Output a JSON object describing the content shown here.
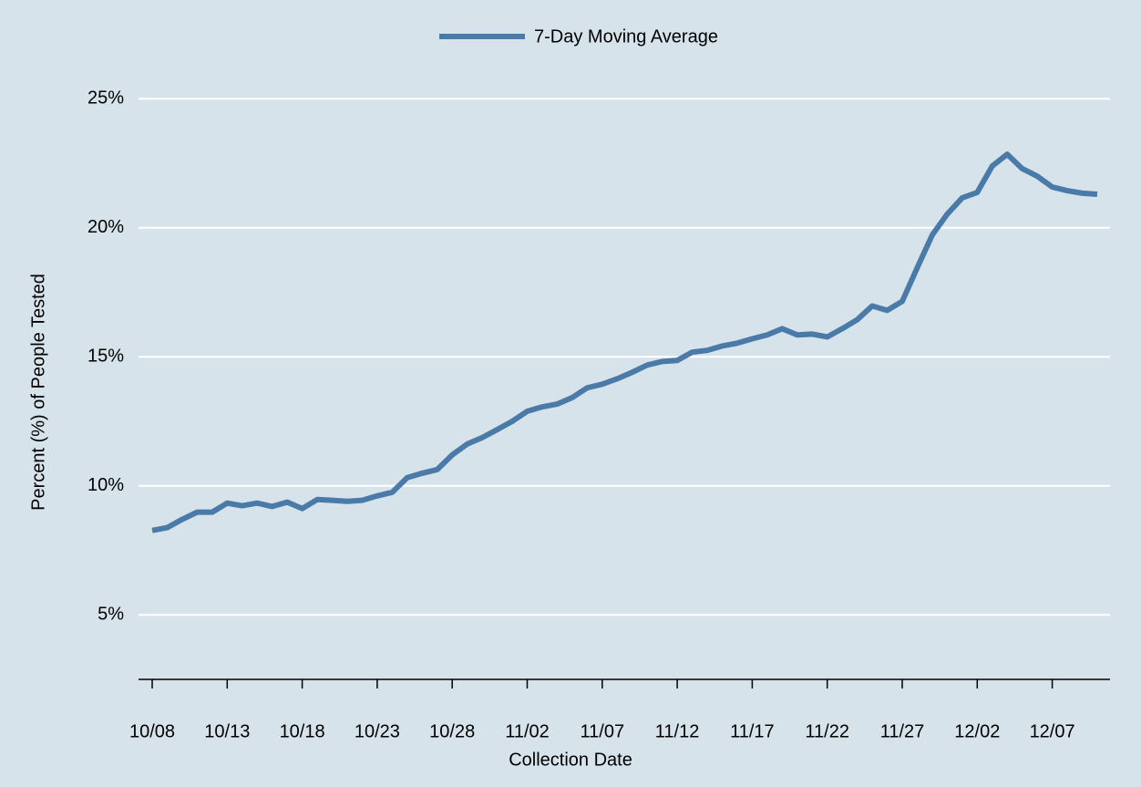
{
  "chart_data": {
    "type": "line",
    "x_label": "Collection Date",
    "y_label": "Percent (%) of People Tested",
    "categories": [
      "10/08",
      null,
      null,
      null,
      null,
      "10/13",
      null,
      null,
      null,
      null,
      "10/18",
      null,
      null,
      null,
      null,
      "10/23",
      null,
      null,
      null,
      null,
      "10/28",
      null,
      null,
      null,
      null,
      "11/02",
      null,
      null,
      null,
      null,
      "11/07",
      null,
      null,
      null,
      null,
      "11/12",
      null,
      null,
      null,
      null,
      "11/17",
      null,
      null,
      null,
      null,
      "11/22",
      null,
      null,
      null,
      null,
      "11/27",
      null,
      null,
      null,
      null,
      "12/02",
      null,
      null,
      null,
      null,
      "12/07",
      null,
      null,
      null
    ],
    "series": [
      {
        "name": "7-Day Moving Average",
        "color": "#4a7aa7",
        "values": [
          8.27,
          8.38,
          8.7,
          8.98,
          8.98,
          9.33,
          9.23,
          9.33,
          9.2,
          9.37,
          9.12,
          9.47,
          9.44,
          9.4,
          9.44,
          9.61,
          9.75,
          10.32,
          10.49,
          10.63,
          11.2,
          11.62,
          11.87,
          12.18,
          12.5,
          12.89,
          13.06,
          13.17,
          13.42,
          13.8,
          13.94,
          14.15,
          14.4,
          14.68,
          14.82,
          14.86,
          15.18,
          15.25,
          15.42,
          15.53,
          15.7,
          15.85,
          16.09,
          15.85,
          15.88,
          15.77,
          16.09,
          16.44,
          16.97,
          16.8,
          17.15,
          18.45,
          19.72,
          20.53,
          21.16,
          21.37,
          22.39,
          22.85,
          22.29,
          22.0,
          21.58,
          21.44,
          21.34,
          21.3
        ]
      }
    ],
    "ylim": [
      2.5,
      26
    ],
    "yticks": [
      {
        "value": 5,
        "label": "5%"
      },
      {
        "value": 10,
        "label": "10%"
      },
      {
        "value": 15,
        "label": "15%"
      },
      {
        "value": 20,
        "label": "20%"
      },
      {
        "value": 25,
        "label": "25%"
      }
    ],
    "grid": true,
    "legend": "top"
  }
}
